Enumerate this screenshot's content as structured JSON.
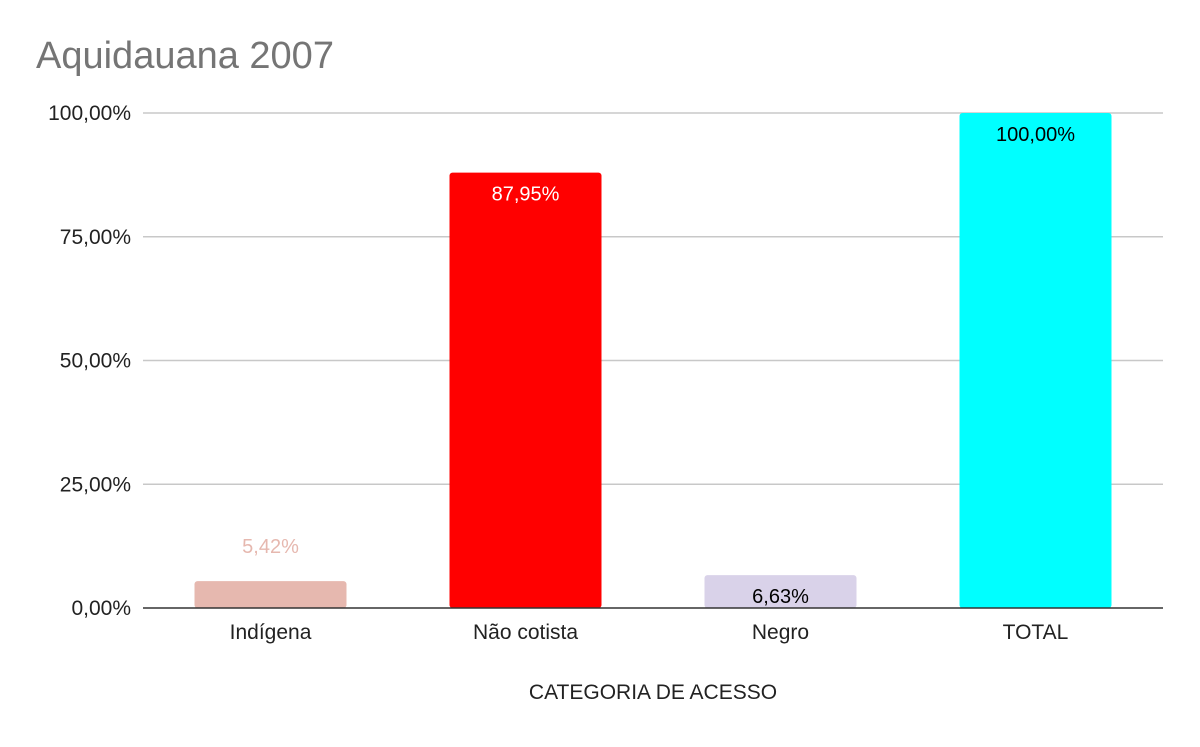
{
  "chart_data": {
    "type": "bar",
    "title": "Aquidauana 2007",
    "xlabel": "CATEGORIA DE ACESSO",
    "ylabel": "",
    "categories": [
      "Indígena",
      "Não cotista",
      "Negro",
      "TOTAL"
    ],
    "values": [
      5.42,
      87.95,
      6.63,
      100.0
    ],
    "data_labels": [
      "5,42%",
      "87,95%",
      "6,63%",
      "100,00%"
    ],
    "bar_colors": [
      "#e6b8af",
      "#ff0000",
      "#d9d2e9",
      "#00ffff"
    ],
    "label_colors": [
      "#e6b8af",
      "#ffffff",
      "#000000",
      "#000000"
    ],
    "label_positions": [
      "above",
      "inside",
      "inside",
      "inside"
    ],
    "ylim": [
      0,
      100
    ],
    "y_ticks": [
      0,
      25,
      50,
      75,
      100
    ],
    "y_tick_labels": [
      "0,00%",
      "25,00%",
      "50,00%",
      "75,00%",
      "100,00%"
    ],
    "grid": true,
    "legend": "none"
  }
}
